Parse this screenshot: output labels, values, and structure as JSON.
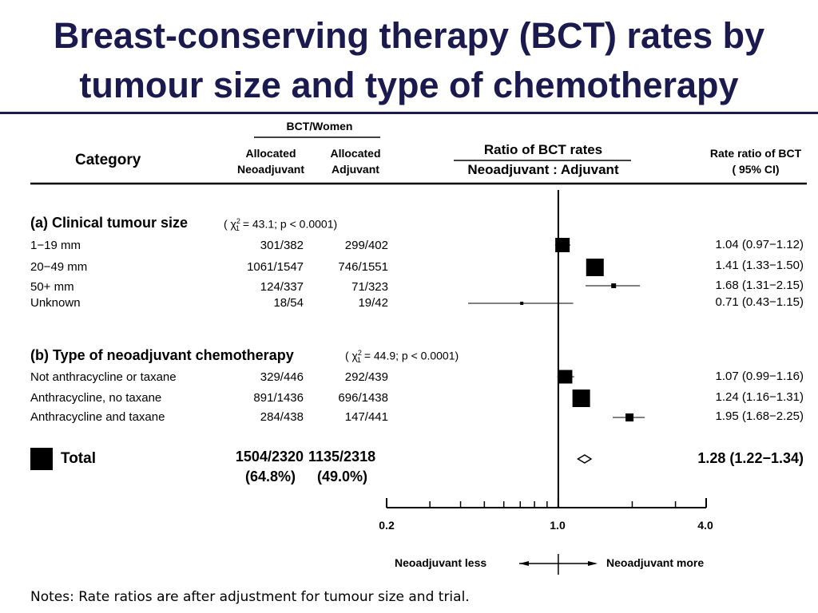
{
  "title": "Breast-conserving therapy (BCT) rates by tumour size and type of chemotherapy",
  "headers": {
    "bct_women": "BCT/Women",
    "category": "Category",
    "neo_l1": "Allocated",
    "neo_l2": "Neoadjuvant",
    "adj_l1": "Allocated",
    "adj_l2": "Adjuvant",
    "ratio_l1": "Ratio of BCT rates",
    "ratio_l2": "Neoadjuvant : Adjuvant",
    "rr_l1": "Rate ratio of BCT",
    "rr_l2": "( 95% CI)"
  },
  "chart_data": {
    "type": "forest",
    "x_scale": "log",
    "xlim": [
      0.2,
      4.0
    ],
    "x_ticklabels": [
      "0.2",
      "1.0",
      "4.0"
    ],
    "reference_line": 1.0,
    "direction_left": "Neoadjuvant less",
    "direction_right": "Neoadjuvant more",
    "sections": [
      {
        "label": "(a) Clinical tumour size",
        "chi_pre": "( χ",
        "chi_sup": "2",
        "chi_sub": "1",
        "chi_post": " = 43.1;  p < 0.0001)",
        "rows": [
          {
            "label": "1−19 mm",
            "neo": "301/382",
            "adj": "299/402",
            "ci_text": "1.04 (0.97−1.12)",
            "rr": 1.04,
            "lo": 0.97,
            "hi": 1.12
          },
          {
            "label": "20−49 mm",
            "neo": "1061/1547",
            "adj": "746/1551",
            "ci_text": "1.41 (1.33−1.50)",
            "rr": 1.41,
            "lo": 1.33,
            "hi": 1.5
          },
          {
            "label": "50+ mm",
            "neo": "124/337",
            "adj": "71/323",
            "ci_text": "1.68 (1.31−2.15)",
            "rr": 1.68,
            "lo": 1.31,
            "hi": 2.15
          },
          {
            "label": "Unknown",
            "neo": "18/54",
            "adj": "19/42",
            "ci_text": "0.71 (0.43−1.15)",
            "rr": 0.71,
            "lo": 0.43,
            "hi": 1.15
          }
        ]
      },
      {
        "label": "(b) Type of neoadjuvant chemotherapy",
        "chi_pre": "( χ",
        "chi_sup": "2",
        "chi_sub": "1",
        "chi_post": " = 44.9;  p < 0.0001)",
        "rows": [
          {
            "label": "Not anthracycline or taxane",
            "neo": "329/446",
            "adj": "292/439",
            "ci_text": "1.07 (0.99−1.16)",
            "rr": 1.07,
            "lo": 0.99,
            "hi": 1.16
          },
          {
            "label": "Anthracycline, no taxane",
            "neo": "891/1436",
            "adj": "696/1438",
            "ci_text": "1.24 (1.16−1.31)",
            "rr": 1.24,
            "lo": 1.16,
            "hi": 1.31
          },
          {
            "label": "Anthracycline and taxane",
            "neo": "284/438",
            "adj": "147/441",
            "ci_text": "1.95 (1.68−2.25)",
            "rr": 1.95,
            "lo": 1.68,
            "hi": 2.25
          }
        ]
      }
    ],
    "total": {
      "label": "Total",
      "neo": "1504/2320",
      "neo_pct": "(64.8%)",
      "adj": "1135/2318",
      "adj_pct": "(49.0%)",
      "ci_text": "1.28 (1.22−1.34)",
      "rr": 1.28,
      "lo": 1.22,
      "hi": 1.34
    }
  },
  "notes": "Notes: Rate ratios are after adjustment for tumour size and trial."
}
